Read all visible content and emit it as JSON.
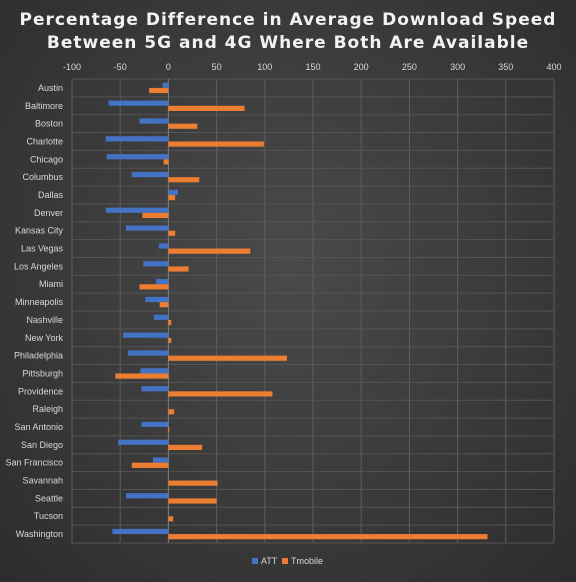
{
  "chart_data": {
    "type": "bar",
    "orientation": "horizontal",
    "title_lines": [
      "Percentage Difference in Average Download Speed",
      "Between 5G and 4G Where Both Are Available"
    ],
    "xlabel": "",
    "ylabel": "",
    "xlim": [
      -100,
      400
    ],
    "x_ticks": [
      -100,
      -50,
      0,
      50,
      100,
      150,
      200,
      250,
      300,
      350,
      400
    ],
    "grid": true,
    "legend_position": "bottom",
    "categories": [
      "Austin",
      "Baltimore",
      "Boston",
      "Charlotte",
      "Chicago",
      "Columbus",
      "Dallas",
      "Denver",
      "Kansas City",
      "Las Vegas",
      "Los Angeles",
      "Miami",
      "Minneapolis",
      "Nashville",
      "New York",
      "Philadelphia",
      "Pittsburgh",
      "Providence",
      "Raleigh",
      "San Antonio",
      "San Diego",
      "San Francisco",
      "Savannah",
      "Seattle",
      "Tucson",
      "Washington"
    ],
    "series": [
      {
        "name": "ATT",
        "color": "#4472c4",
        "values": [
          -6,
          -62,
          -30,
          -65,
          -64,
          -38,
          10,
          -65,
          -44,
          -10,
          -26,
          -13,
          -24,
          -15,
          -47,
          -42,
          -29,
          -28,
          0,
          -28,
          -52,
          -16,
          0,
          -44,
          0,
          -58
        ]
      },
      {
        "name": "Tmobile",
        "color": "#ed7d31",
        "values": [
          -20,
          79,
          30,
          99,
          -5,
          32,
          7,
          -27,
          7,
          85,
          21,
          -30,
          -9,
          3,
          3,
          123,
          -55,
          108,
          6,
          1,
          35,
          -38,
          51,
          50,
          5,
          331
        ]
      }
    ]
  }
}
